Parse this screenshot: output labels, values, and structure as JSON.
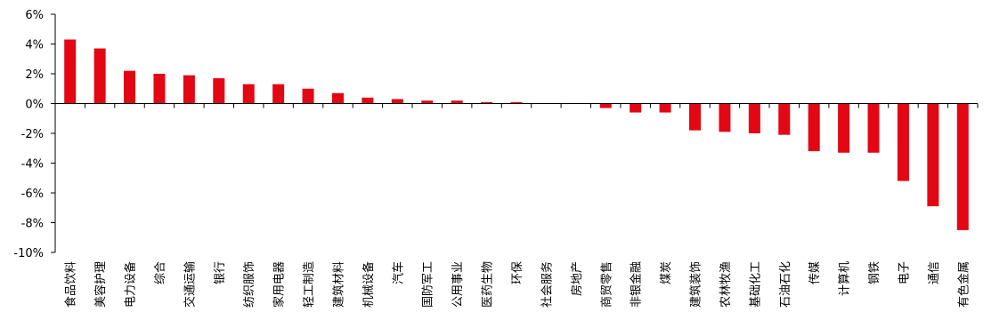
{
  "chart_data": {
    "type": "bar",
    "title": "",
    "xlabel": "",
    "ylabel": "",
    "ylim": [
      -10,
      6
    ],
    "y_ticks": [
      "6%",
      "4%",
      "2%",
      "0%",
      "-2%",
      "-4%",
      "-6%",
      "-8%",
      "-10%"
    ],
    "y_tick_values": [
      6,
      4,
      2,
      0,
      -2,
      -4,
      -6,
      -8,
      -10
    ],
    "grid": false,
    "legend": "none",
    "bar_color": "#E30613",
    "categories": [
      "食品饮料",
      "美容护理",
      "电力设备",
      "综合",
      "交通运输",
      "银行",
      "纺织服饰",
      "家用电器",
      "轻工制造",
      "建筑材料",
      "机械设备",
      "汽车",
      "国防军工",
      "公用事业",
      "医药生物",
      "环保",
      "社会服务",
      "房地产",
      "商贸零售",
      "非银金融",
      "煤炭",
      "建筑装饰",
      "农林牧渔",
      "基础化工",
      "石油石化",
      "传媒",
      "计算机",
      "钢铁",
      "电子",
      "通信",
      "有色金属"
    ],
    "values": [
      4.3,
      3.7,
      2.2,
      2.0,
      1.9,
      1.7,
      1.3,
      1.3,
      1.0,
      0.7,
      0.4,
      0.3,
      0.2,
      0.2,
      0.1,
      0.1,
      0.0,
      0.0,
      -0.3,
      -0.6,
      -0.6,
      -1.8,
      -1.9,
      -2.0,
      -2.1,
      -3.2,
      -3.3,
      -3.3,
      -5.2,
      -6.9,
      -8.5
    ]
  }
}
